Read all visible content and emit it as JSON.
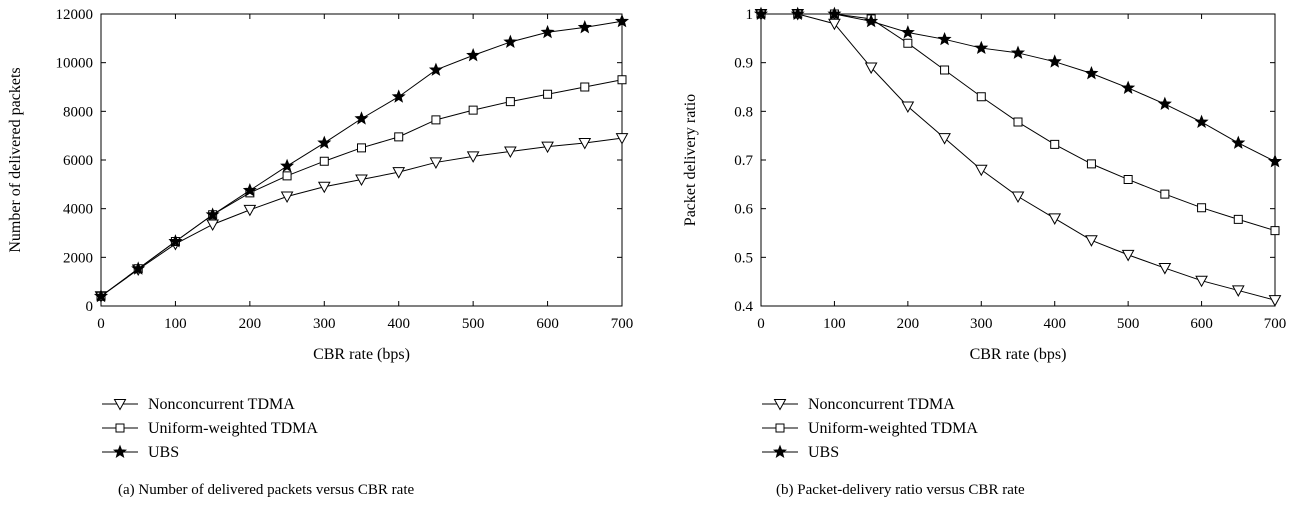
{
  "chart_data": [
    {
      "type": "line",
      "caption": "(a) Number of delivered packets versus CBR rate",
      "xlabel": "CBR rate (bps)",
      "ylabel": "Number of delivered packets",
      "xlim": [
        0,
        700
      ],
      "ylim": [
        0,
        12000
      ],
      "xticks": [
        "0",
        "100",
        "200",
        "300",
        "400",
        "500",
        "600",
        "700"
      ],
      "yticks": [
        "0",
        "2000",
        "4000",
        "6000",
        "8000",
        "10000",
        "12000"
      ],
      "grid": false,
      "legend_position": "below",
      "x": [
        0,
        50,
        100,
        150,
        200,
        250,
        300,
        350,
        400,
        450,
        500,
        550,
        600,
        650,
        700
      ],
      "series": [
        {
          "name": "Nonconcurrent TDMA",
          "marker": "triangle-down",
          "values": [
            400,
            1500,
            2550,
            3350,
            3950,
            4500,
            4900,
            5200,
            5500,
            5900,
            6150,
            6350,
            6550,
            6700,
            6900
          ]
        },
        {
          "name": "Uniform-weighted TDMA",
          "marker": "square",
          "values": [
            400,
            1530,
            2650,
            3750,
            4650,
            5350,
            5950,
            6500,
            6950,
            7650,
            8050,
            8400,
            8700,
            9000,
            9300
          ]
        },
        {
          "name": "UBS",
          "marker": "star",
          "values": [
            400,
            1530,
            2650,
            3750,
            4750,
            5750,
            6700,
            7700,
            8600,
            9700,
            10300,
            10850,
            11250,
            11450,
            11700
          ]
        }
      ]
    },
    {
      "type": "line",
      "caption": "(b) Packet-delivery ratio versus CBR rate",
      "xlabel": "CBR rate (bps)",
      "ylabel": "Packet delivery ratio",
      "xlim": [
        0,
        700
      ],
      "ylim": [
        0.4,
        1
      ],
      "xticks": [
        "0",
        "100",
        "200",
        "300",
        "400",
        "500",
        "600",
        "700"
      ],
      "yticks": [
        "0.4",
        "0.5",
        "0.6",
        "0.7",
        "0.8",
        "0.9",
        "1"
      ],
      "grid": false,
      "legend_position": "below",
      "x": [
        0,
        50,
        100,
        150,
        200,
        250,
        300,
        350,
        400,
        450,
        500,
        550,
        600,
        650,
        700
      ],
      "series": [
        {
          "name": "Nonconcurrent TDMA",
          "marker": "triangle-down",
          "values": [
            1.0,
            1.0,
            0.98,
            0.89,
            0.81,
            0.745,
            0.68,
            0.625,
            0.58,
            0.535,
            0.505,
            0.478,
            0.452,
            0.432,
            0.412
          ]
        },
        {
          "name": "Uniform-weighted TDMA",
          "marker": "square",
          "values": [
            1.0,
            1.0,
            1.0,
            0.99,
            0.94,
            0.885,
            0.83,
            0.778,
            0.732,
            0.692,
            0.66,
            0.63,
            0.602,
            0.578,
            0.555
          ]
        },
        {
          "name": "UBS",
          "marker": "star",
          "values": [
            1.0,
            1.0,
            1.0,
            0.985,
            0.962,
            0.948,
            0.93,
            0.92,
            0.902,
            0.878,
            0.848,
            0.815,
            0.778,
            0.735,
            0.697
          ]
        }
      ]
    }
  ]
}
